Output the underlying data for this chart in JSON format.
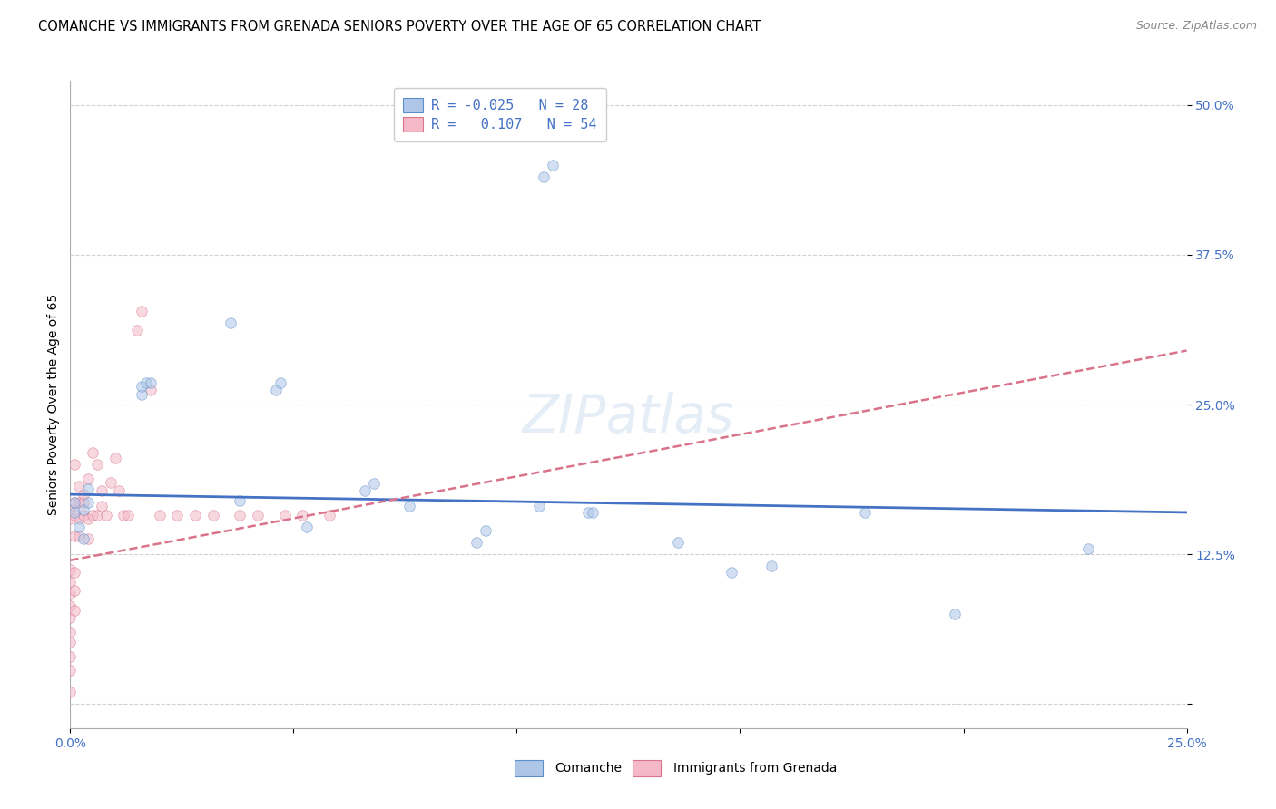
{
  "title": "COMANCHE VS IMMIGRANTS FROM GRENADA SENIORS POVERTY OVER THE AGE OF 65 CORRELATION CHART",
  "source": "Source: ZipAtlas.com",
  "ylabel": "Seniors Poverty Over the Age of 65",
  "xlim": [
    0.0,
    0.25
  ],
  "ylim": [
    -0.02,
    0.52
  ],
  "ytick_vals": [
    0.0,
    0.125,
    0.25,
    0.375,
    0.5
  ],
  "ytick_labels": [
    "",
    "12.5%",
    "25.0%",
    "37.5%",
    "50.0%"
  ],
  "xtick_vals": [
    0.0,
    0.05,
    0.1,
    0.15,
    0.2,
    0.25
  ],
  "grid_color": "#d0d0d0",
  "background_color": "#ffffff",
  "legend_label1": "Comanche",
  "legend_label2": "Immigrants from Grenada",
  "comanche_color": "#aec6e8",
  "comanche_edge_color": "#5b8fc9",
  "comanche_line_color": "#4472c4",
  "grenada_color": "#f4b8c8",
  "grenada_edge_color": "#d9738a",
  "grenada_line_color": "#d9738a",
  "tick_color": "#4472c4",
  "title_fontsize": 10.5,
  "source_fontsize": 9,
  "axis_label_fontsize": 10,
  "tick_fontsize": 10,
  "legend_fontsize": 11,
  "marker_size": 70,
  "marker_alpha": 0.55,
  "comanche_x": [
    0.001,
    0.001,
    0.002,
    0.003,
    0.003,
    0.004,
    0.004,
    0.016,
    0.016,
    0.017,
    0.018,
    0.036,
    0.038,
    0.046,
    0.047,
    0.053,
    0.066,
    0.068,
    0.076,
    0.091,
    0.093,
    0.105,
    0.106,
    0.108,
    0.116,
    0.117,
    0.136,
    0.148,
    0.157,
    0.178,
    0.198,
    0.228
  ],
  "comanche_y": [
    0.16,
    0.168,
    0.148,
    0.138,
    0.162,
    0.168,
    0.18,
    0.258,
    0.265,
    0.268,
    0.268,
    0.318,
    0.17,
    0.262,
    0.268,
    0.148,
    0.178,
    0.184,
    0.165,
    0.135,
    0.145,
    0.165,
    0.44,
    0.45,
    0.16,
    0.16,
    0.135,
    0.11,
    0.115,
    0.16,
    0.075,
    0.13
  ],
  "grenada_x": [
    0.0,
    0.0,
    0.0,
    0.0,
    0.0,
    0.0,
    0.0,
    0.0,
    0.0,
    0.0,
    0.0,
    0.0,
    0.001,
    0.001,
    0.001,
    0.001,
    0.001,
    0.001,
    0.001,
    0.002,
    0.002,
    0.002,
    0.002,
    0.003,
    0.003,
    0.003,
    0.004,
    0.004,
    0.004,
    0.005,
    0.005,
    0.006,
    0.006,
    0.007,
    0.007,
    0.008,
    0.009,
    0.01,
    0.011,
    0.012,
    0.013,
    0.015,
    0.016,
    0.018,
    0.02,
    0.024,
    0.028,
    0.032,
    0.038,
    0.042,
    0.048,
    0.052,
    0.058
  ],
  "grenada_y": [
    0.01,
    0.028,
    0.04,
    0.052,
    0.06,
    0.072,
    0.082,
    0.092,
    0.102,
    0.112,
    0.155,
    0.162,
    0.078,
    0.095,
    0.11,
    0.14,
    0.158,
    0.168,
    0.2,
    0.14,
    0.155,
    0.168,
    0.182,
    0.158,
    0.168,
    0.175,
    0.138,
    0.155,
    0.188,
    0.158,
    0.21,
    0.158,
    0.2,
    0.165,
    0.178,
    0.158,
    0.185,
    0.205,
    0.178,
    0.158,
    0.158,
    0.312,
    0.328,
    0.262,
    0.158,
    0.158,
    0.158,
    0.158,
    0.158,
    0.158,
    0.158,
    0.158,
    0.158
  ],
  "comanche_trend_x": [
    0.0,
    0.25
  ],
  "comanche_trend_y": [
    0.175,
    0.16
  ],
  "grenada_trend_x": [
    0.0,
    0.25
  ],
  "grenada_trend_y": [
    0.12,
    0.295
  ]
}
